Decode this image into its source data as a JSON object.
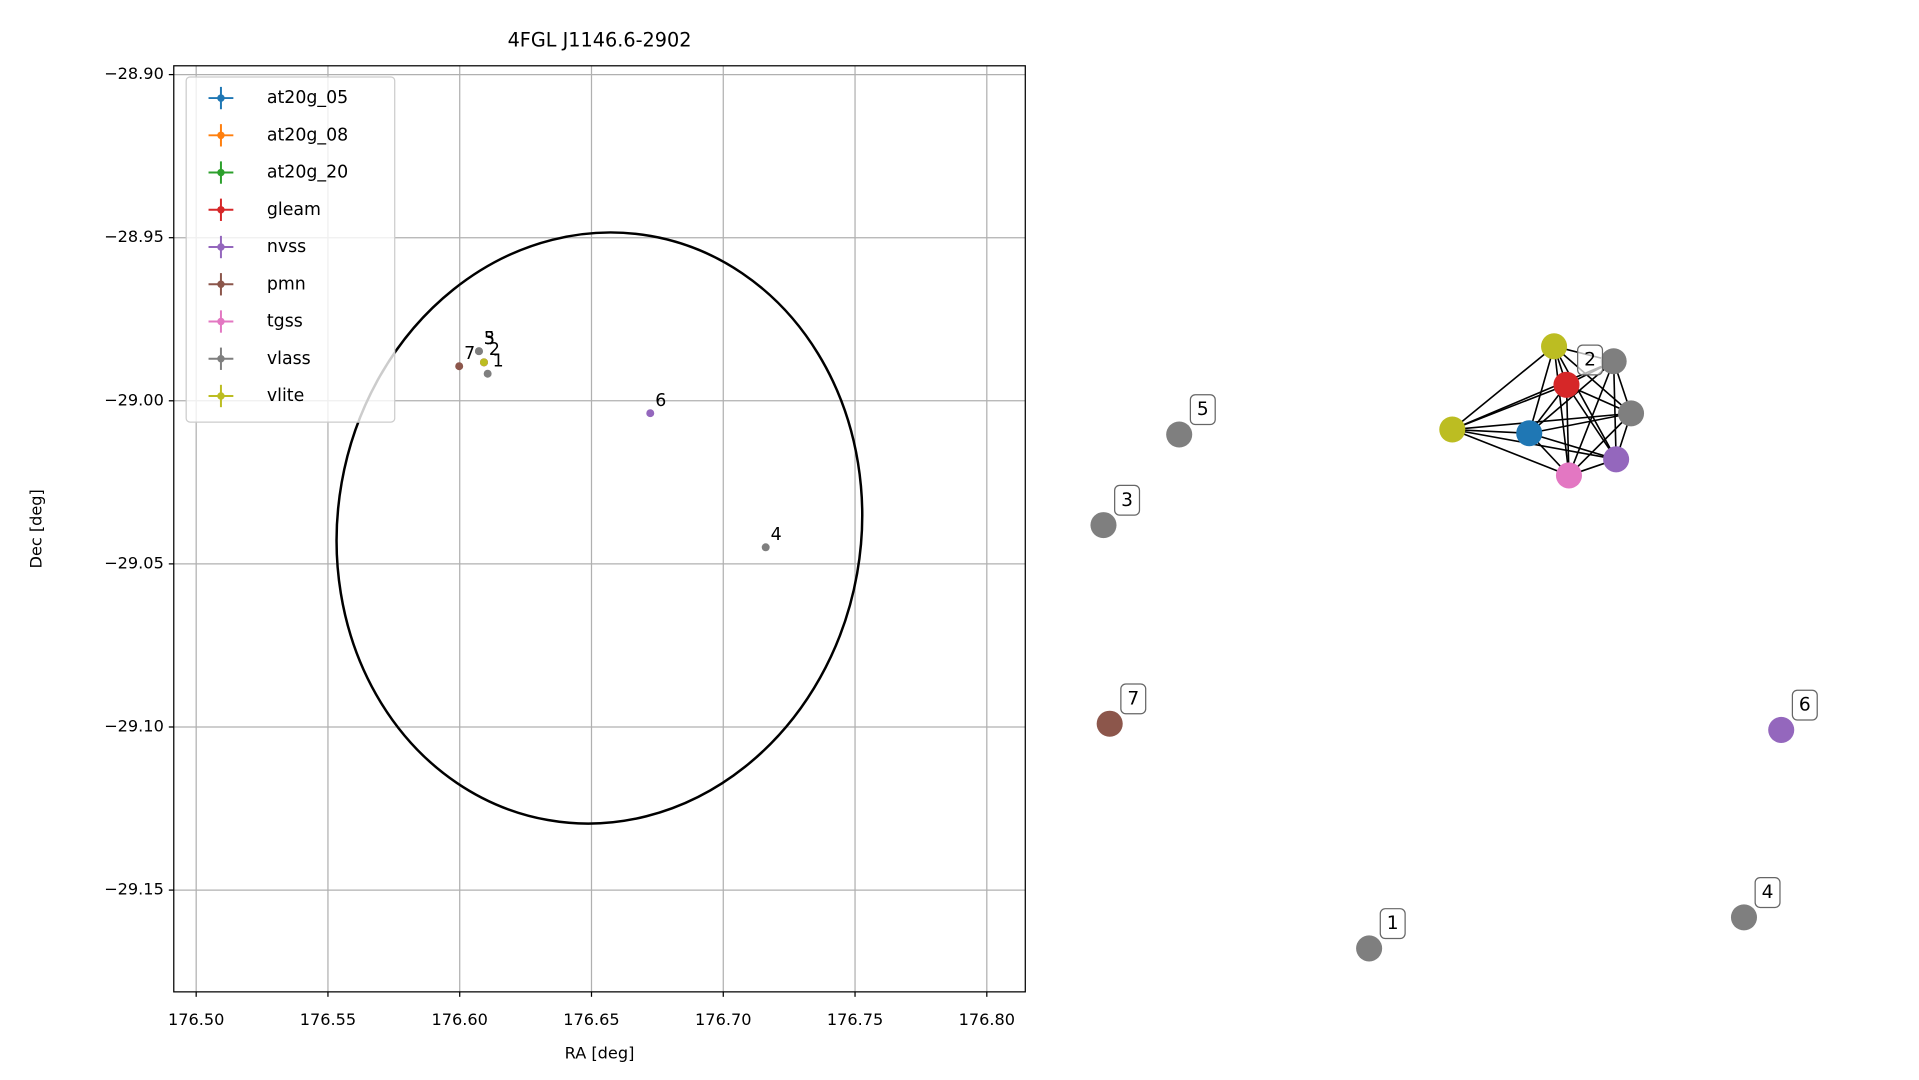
{
  "chart_data": {
    "type": "scatter",
    "title": "4FGL J1146.6-2902",
    "x_label": "RA [deg]",
    "y_label": "Dec [deg]",
    "xlim": [
      176.4915,
      176.8146
    ],
    "ylim": [
      -29.1812,
      -28.8973
    ],
    "xticks": [
      {
        "value": 176.5,
        "label": "176.50"
      },
      {
        "value": 176.55,
        "label": "176.55"
      },
      {
        "value": 176.6,
        "label": "176.60"
      },
      {
        "value": 176.65,
        "label": "176.65"
      },
      {
        "value": 176.7,
        "label": "176.70"
      },
      {
        "value": 176.75,
        "label": "176.75"
      },
      {
        "value": 176.8,
        "label": "176.80"
      }
    ],
    "yticks": [
      {
        "value": -28.9,
        "label": "−28.90"
      },
      {
        "value": -28.95,
        "label": "−28.95"
      },
      {
        "value": -29.0,
        "label": "−29.00"
      },
      {
        "value": -29.05,
        "label": "−29.05"
      },
      {
        "value": -29.1,
        "label": "−29.10"
      },
      {
        "value": -29.15,
        "label": "−29.15"
      }
    ],
    "grid": true,
    "legend": "upper left",
    "series": [
      {
        "name": "at20g_05",
        "color": "#1f77b4",
        "x": [
          176.6092
        ],
        "y": [
          -28.9882
        ]
      },
      {
        "name": "at20g_08",
        "color": "#ff7f0e",
        "x": [],
        "y": []
      },
      {
        "name": "at20g_20",
        "color": "#2ca02c",
        "x": [],
        "y": []
      },
      {
        "name": "gleam",
        "color": "#d62728",
        "x": [
          176.6092
        ],
        "y": [
          -28.9882
        ]
      },
      {
        "name": "nvss",
        "color": "#9467bd",
        "x": [
          176.6092,
          176.6723
        ],
        "y": [
          -28.9882,
          -29.0038
        ],
        "labels": [
          null,
          "6"
        ]
      },
      {
        "name": "pmn",
        "color": "#8c564b",
        "x": [
          176.5998
        ],
        "y": [
          -28.9894
        ],
        "labels": [
          "7"
        ]
      },
      {
        "name": "tgss",
        "color": "#e377c2",
        "x": [
          176.6092
        ],
        "y": [
          -28.9882
        ]
      },
      {
        "name": "vlass",
        "color": "#7f7f7f",
        "x": [
          176.6106,
          176.6073,
          176.7161,
          176.6073
        ],
        "y": [
          -28.9917,
          -28.9848,
          -29.0449,
          -28.9848
        ],
        "labels": [
          "1",
          "3",
          "4",
          "5"
        ]
      },
      {
        "name": "vlite",
        "color": "#bcbd22",
        "x": [
          176.6092
        ],
        "y": [
          -28.9882
        ],
        "labels": [
          "2"
        ]
      }
    ],
    "ellipse": {
      "ra": 176.653,
      "dec": -29.039,
      "semi_ra": 0.0993,
      "semi_dec": 0.0909,
      "angle": 10
    }
  },
  "graph": {
    "nodes": [
      {
        "color": "#bcbd22"
      },
      {
        "color": "#7f7f7f"
      },
      {
        "color": "#d62728",
        "label": "2"
      },
      {
        "color": "#7f7f7f"
      },
      {
        "color": "#bcbd22"
      },
      {
        "color": "#1f77b4"
      },
      {
        "color": "#9467bd"
      },
      {
        "color": "#e377c2"
      },
      {
        "color": "#7f7f7f",
        "label": "5"
      },
      {
        "color": "#7f7f7f",
        "label": "3"
      },
      {
        "color": "#8c564b",
        "label": "7"
      },
      {
        "color": "#7f7f7f",
        "label": "1"
      },
      {
        "color": "#7f7f7f",
        "label": "4"
      },
      {
        "color": "#9467bd",
        "label": "6"
      }
    ],
    "edges": [
      [
        0,
        1
      ],
      [
        0,
        2
      ],
      [
        0,
        3
      ],
      [
        0,
        4
      ],
      [
        0,
        5
      ],
      [
        0,
        6
      ],
      [
        0,
        7
      ],
      [
        1,
        2
      ],
      [
        1,
        3
      ],
      [
        1,
        4
      ],
      [
        1,
        5
      ],
      [
        1,
        6
      ],
      [
        1,
        7
      ],
      [
        2,
        3
      ],
      [
        2,
        4
      ],
      [
        2,
        5
      ],
      [
        2,
        6
      ],
      [
        2,
        7
      ],
      [
        3,
        4
      ],
      [
        3,
        5
      ],
      [
        3,
        6
      ],
      [
        3,
        7
      ],
      [
        4,
        5
      ],
      [
        4,
        6
      ],
      [
        4,
        7
      ],
      [
        5,
        6
      ],
      [
        5,
        7
      ],
      [
        6,
        7
      ]
    ]
  }
}
